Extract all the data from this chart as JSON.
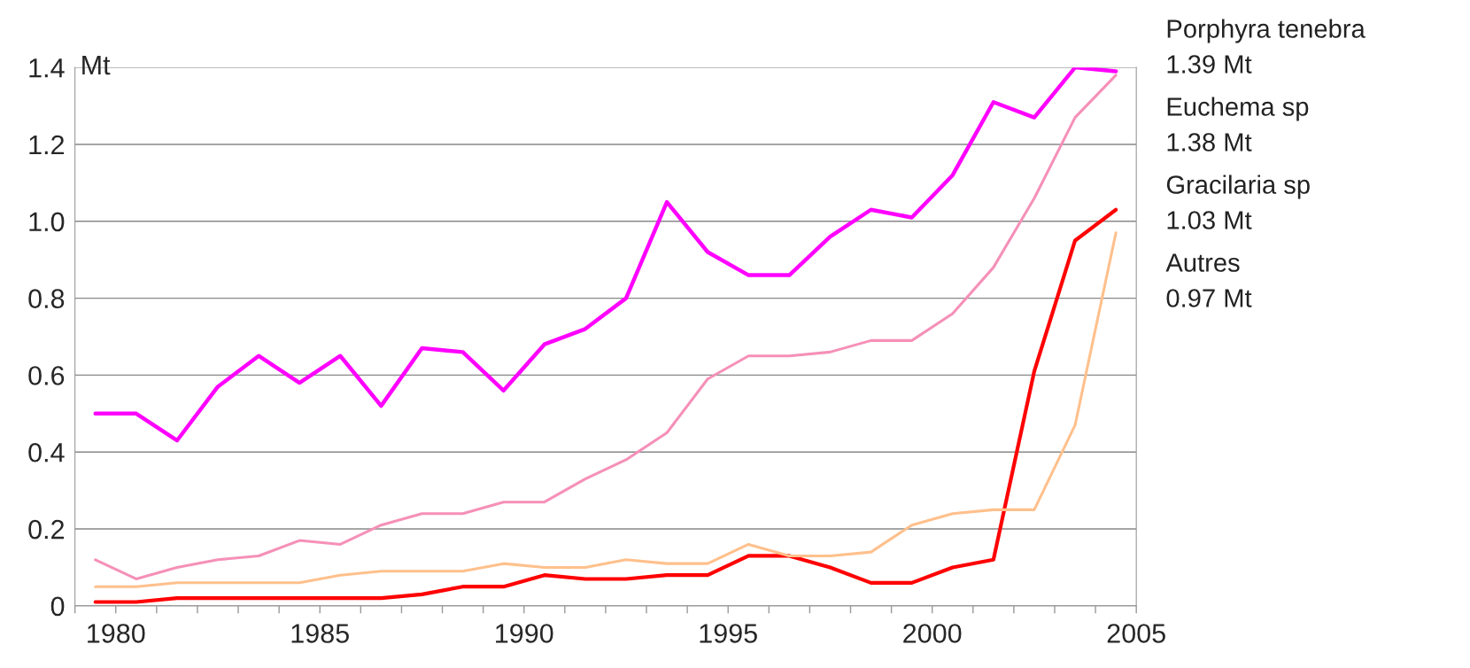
{
  "chart_data": {
    "type": "line",
    "ylabel": "Mt",
    "x": [
      1979.5,
      1980.5,
      1981.5,
      1982.5,
      1983.5,
      1984.5,
      1985.5,
      1986.5,
      1987.5,
      1988.5,
      1989.5,
      1990.5,
      1991.5,
      1992.5,
      1993.5,
      1994.5,
      1995.5,
      1996.5,
      1997.5,
      1998.5,
      1999.5,
      2000.5,
      2001.5,
      2002.5,
      2003.5,
      2004.5
    ],
    "series": [
      {
        "name": "Porphyra tenebra",
        "color": "#ff00ff",
        "values": [
          0.5,
          0.5,
          0.43,
          0.57,
          0.65,
          0.58,
          0.65,
          0.52,
          0.67,
          0.66,
          0.56,
          0.68,
          0.72,
          0.8,
          1.05,
          0.92,
          0.86,
          0.86,
          0.96,
          1.03,
          1.01,
          1.12,
          1.31,
          1.27,
          1.4,
          1.39
        ]
      },
      {
        "name": "Euchema sp",
        "color": "#f590b8",
        "values": [
          0.12,
          0.07,
          0.1,
          0.12,
          0.13,
          0.17,
          0.16,
          0.21,
          0.24,
          0.24,
          0.27,
          0.27,
          0.33,
          0.38,
          0.45,
          0.59,
          0.65,
          0.65,
          0.66,
          0.69,
          0.69,
          0.76,
          0.88,
          1.06,
          1.27,
          1.38
        ]
      },
      {
        "name": "Gracilaria sp",
        "color": "#ff0000",
        "values": [
          0.01,
          0.01,
          0.02,
          0.02,
          0.02,
          0.02,
          0.02,
          0.02,
          0.03,
          0.05,
          0.05,
          0.08,
          0.07,
          0.07,
          0.08,
          0.08,
          0.13,
          0.13,
          0.1,
          0.06,
          0.06,
          0.1,
          0.12,
          0.61,
          0.95,
          1.03
        ]
      },
      {
        "name": "Autres",
        "color": "#ffc08c",
        "values": [
          0.05,
          0.05,
          0.06,
          0.06,
          0.06,
          0.06,
          0.08,
          0.09,
          0.09,
          0.09,
          0.11,
          0.1,
          0.1,
          0.12,
          0.11,
          0.11,
          0.16,
          0.13,
          0.13,
          0.14,
          0.21,
          0.24,
          0.25,
          0.25,
          0.47,
          0.97
        ]
      }
    ],
    "annotations": [
      "1.39 Mt",
      "1.38 Mt",
      "1.03 Mt",
      "0.97 Mt"
    ],
    "xlim": [
      1979,
      2005
    ],
    "xticks": [
      {
        "value": 1979,
        "label": null
      },
      1980,
      {
        "value": 1981,
        "label": null
      },
      {
        "value": 1982,
        "label": null
      },
      {
        "value": 1983,
        "label": null
      },
      {
        "value": 1984,
        "label": null
      },
      1985,
      {
        "value": 1986,
        "label": null
      },
      {
        "value": 1987,
        "label": null
      },
      {
        "value": 1988,
        "label": null
      },
      {
        "value": 1989,
        "label": null
      },
      1990,
      {
        "value": 1991,
        "label": null
      },
      {
        "value": 1992,
        "label": null
      },
      {
        "value": 1993,
        "label": null
      },
      {
        "value": 1994,
        "label": null
      },
      1995,
      {
        "value": 1996,
        "label": null
      },
      {
        "value": 1997,
        "label": null
      },
      {
        "value": 1998,
        "label": null
      },
      {
        "value": 1999,
        "label": null
      },
      2000,
      {
        "value": 2001,
        "label": null
      },
      {
        "value": 2002,
        "label": null
      },
      {
        "value": 2003,
        "label": null
      },
      {
        "value": 2004,
        "label": null
      },
      2005
    ],
    "ylim": [
      0,
      1.4
    ],
    "yticks": [
      0,
      {
        "value": 0.2,
        "label": "0.2"
      },
      {
        "value": 0.4,
        "label": "0.4"
      },
      {
        "value": 0.6,
        "label": "0.6"
      },
      {
        "value": 0.8,
        "label": "0.8"
      },
      {
        "value": 1.0,
        "label": "1.0"
      },
      {
        "value": 1.2,
        "label": "1.2"
      },
      {
        "value": 1.4,
        "label": "1.4"
      }
    ],
    "grid": "y",
    "legend": "right",
    "marker": "none",
    "line_style": "solid"
  }
}
